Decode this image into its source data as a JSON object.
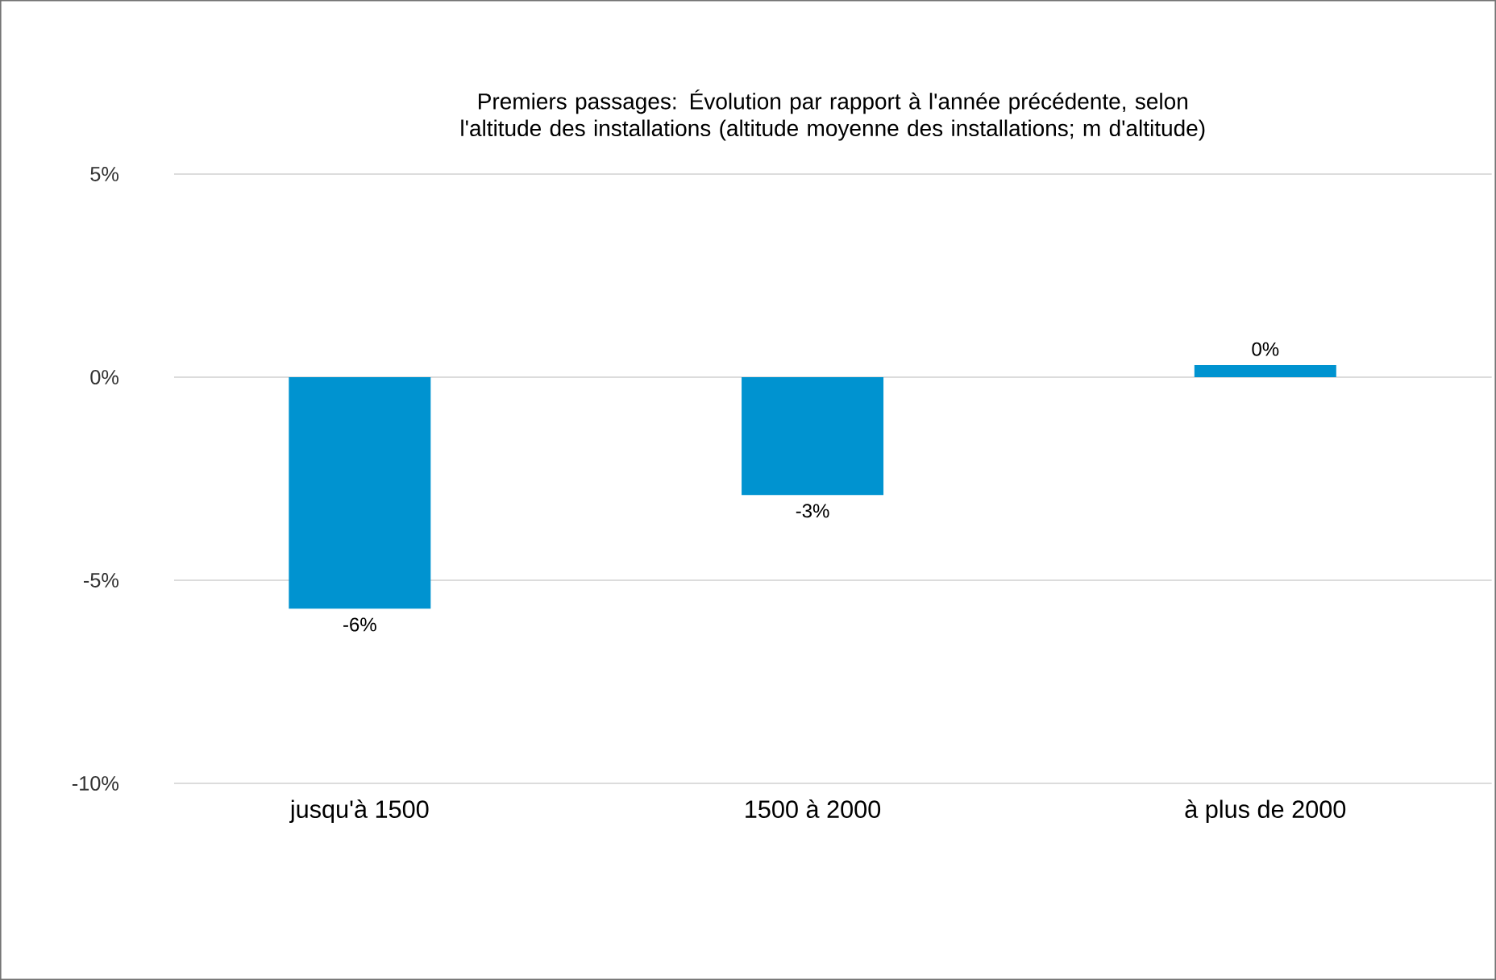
{
  "chart_data": {
    "type": "bar",
    "title": "Premiers passages: Évolution par rapport à l'année précédente, selon l'altitude des installations (altitude moyenne des installations; m d'altitude)",
    "categories": [
      "jusqu'à 1500",
      "1500 à 2000",
      "à plus de 2000"
    ],
    "values": [
      -5.7,
      -2.9,
      0.3
    ],
    "value_labels": [
      "-6%",
      "-3%",
      "0%"
    ],
    "color": "#0093d0",
    "ylim": [
      -10,
      5
    ],
    "yticks": [
      {
        "value": 5,
        "label": "5%"
      },
      {
        "value": 0,
        "label": "0%"
      },
      {
        "value": -5,
        "label": "-5%"
      },
      {
        "value": -10,
        "label": "-10%"
      }
    ],
    "grid": "y"
  }
}
